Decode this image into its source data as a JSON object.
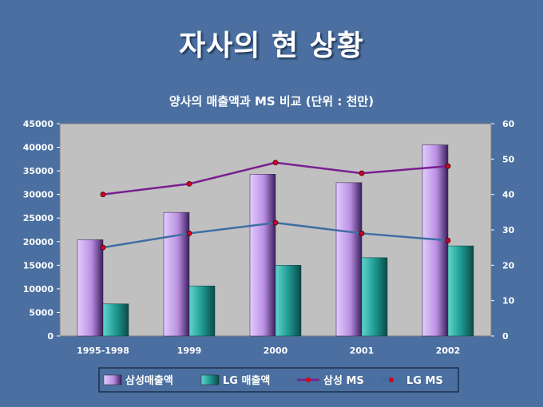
{
  "slide": {
    "title": "자사의 현 상황"
  },
  "chart_data": {
    "type": "bar",
    "title": "양사의 매출액과 MS 비교 (단위 : 천만)",
    "categories": [
      "1995-1998",
      "1999",
      "2000",
      "2001",
      "2002"
    ],
    "series": [
      {
        "name": "삼성매출액",
        "kind": "bar",
        "axis": "left",
        "color": "#b98fe0",
        "values": [
          20400,
          26200,
          34300,
          32500,
          40500
        ]
      },
      {
        "name": "LG 매출액",
        "kind": "bar",
        "axis": "left",
        "color": "#1f9a94",
        "values": [
          6800,
          10600,
          15000,
          16600,
          19100
        ]
      },
      {
        "name": "삼성 MS",
        "kind": "line",
        "axis": "right",
        "color": "#7a1f8f",
        "values": [
          40,
          43,
          49,
          46,
          48
        ]
      },
      {
        "name": "LG MS",
        "kind": "line",
        "axis": "right",
        "color": "#3d6fa3",
        "values": [
          25,
          29,
          32,
          29,
          27
        ]
      }
    ],
    "y_left": {
      "min": 0,
      "max": 45000,
      "ticks": [
        "0",
        "5000",
        "10000",
        "15000",
        "20000",
        "25000",
        "30000",
        "35000",
        "40000",
        "45000"
      ]
    },
    "y_right": {
      "min": 0,
      "max": 60,
      "ticks": [
        "0",
        "10",
        "20",
        "30",
        "40",
        "50",
        "60"
      ]
    },
    "marker_color": "#d4001f",
    "plot_background": "#c0c0c0",
    "grid": false,
    "legend_position": "bottom"
  }
}
